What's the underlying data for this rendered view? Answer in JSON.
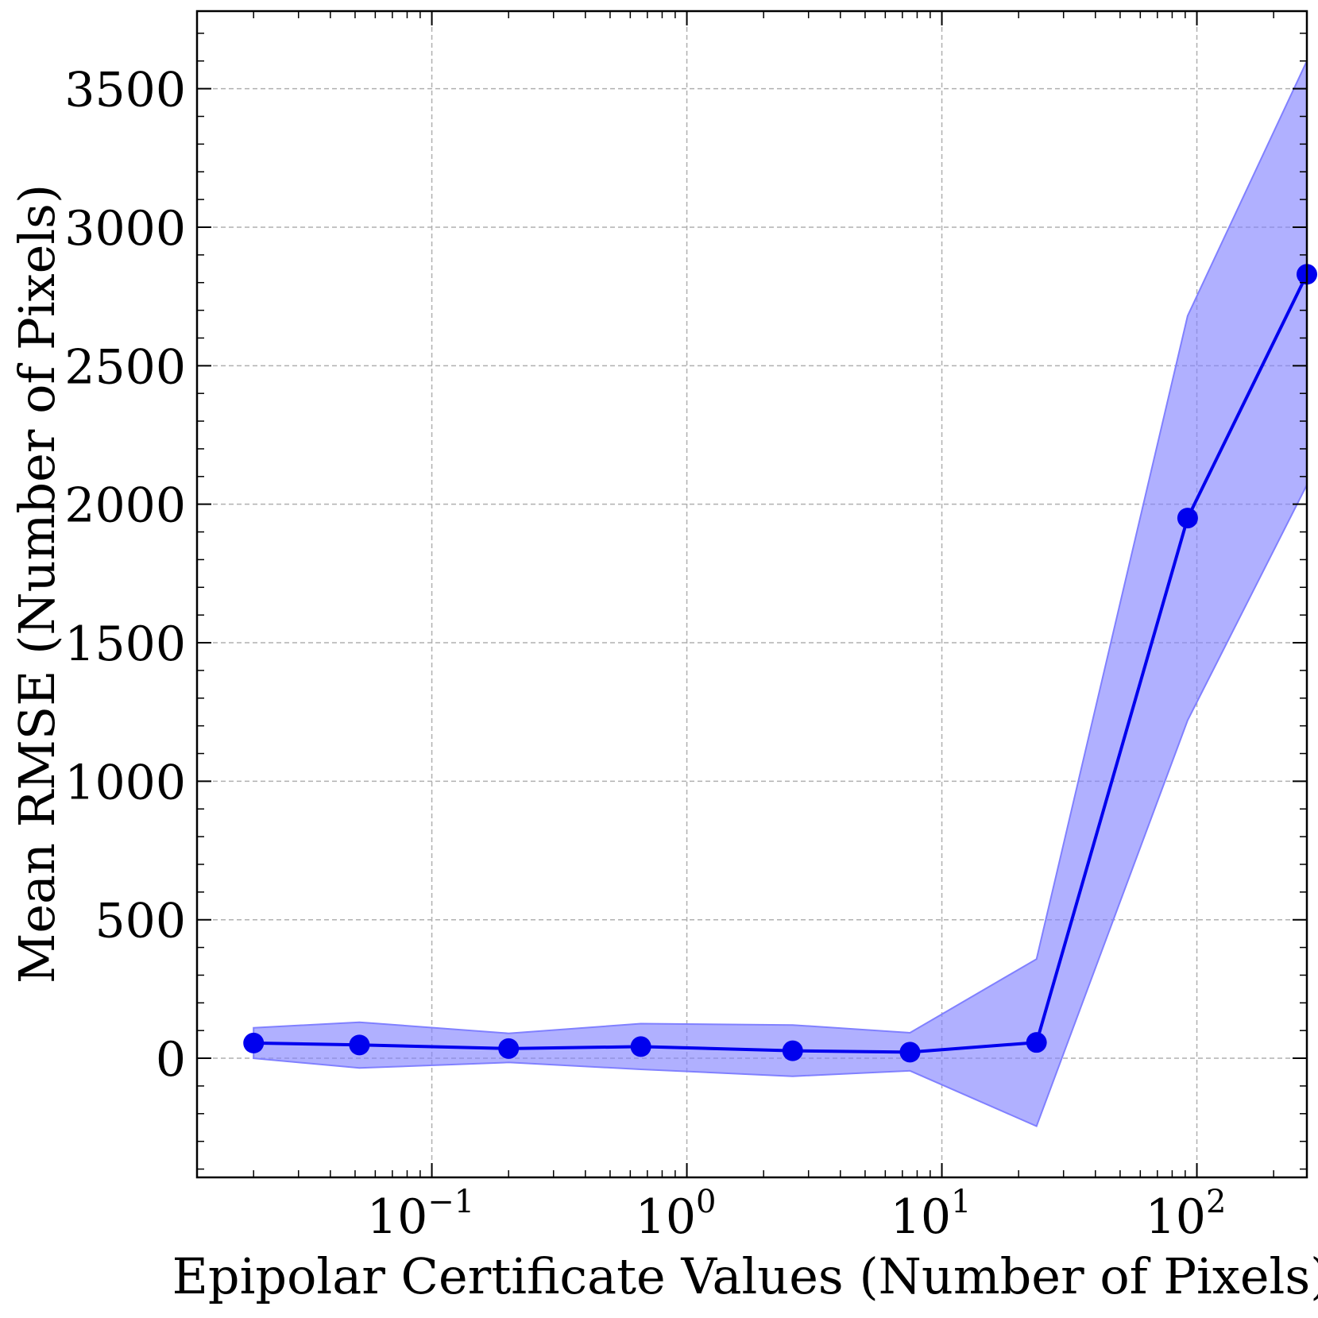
{
  "chart_data": {
    "type": "line",
    "x_scale": "log",
    "xlabel": "Epipolar Certificate Values (Number of Pixels)",
    "ylabel": "Mean RMSE (Number of Pixels)",
    "xlim": [
      0.012,
      270
    ],
    "ylim": [
      -430,
      3780
    ],
    "grid": true,
    "x_ticks": [
      {
        "value": 0.1,
        "base": "10",
        "exp": "−1"
      },
      {
        "value": 1,
        "base": "10",
        "exp": "0"
      },
      {
        "value": 10,
        "base": "10",
        "exp": "1"
      },
      {
        "value": 100,
        "base": "10",
        "exp": "2"
      }
    ],
    "y_ticks": [
      0,
      500,
      1000,
      1500,
      2000,
      2500,
      3000,
      3500
    ],
    "series": [
      {
        "x": [
          0.02,
          0.052,
          0.2,
          0.66,
          2.6,
          7.5,
          23.5,
          92,
          270
        ],
        "y": [
          55,
          48,
          35,
          42,
          27,
          22,
          57,
          1950,
          2830
        ],
        "lower": [
          0,
          -35,
          -15,
          -40,
          -65,
          -45,
          -245,
          1220,
          2070
        ],
        "upper": [
          110,
          130,
          90,
          125,
          120,
          92,
          358,
          2680,
          3600
        ]
      }
    ],
    "line_color": "#0000ee",
    "band_color": "#8080ff"
  }
}
